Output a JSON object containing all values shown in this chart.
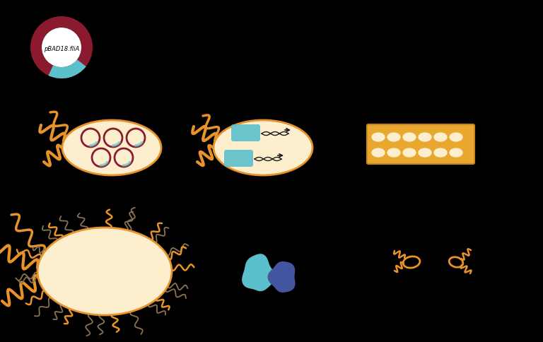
{
  "bg_color": "#000000",
  "orange": "#E8922A",
  "body_fill": "#FDEECE",
  "plasmid_red": "#8B1A2E",
  "dna_blue": "#5BBFCC",
  "dark_blue": "#4455A0",
  "gray_flag": "#8B7355",
  "plate_fill": "#E8A830",
  "plate_edge": "#C88820",
  "cell_on_plate": "#FDEECE"
}
